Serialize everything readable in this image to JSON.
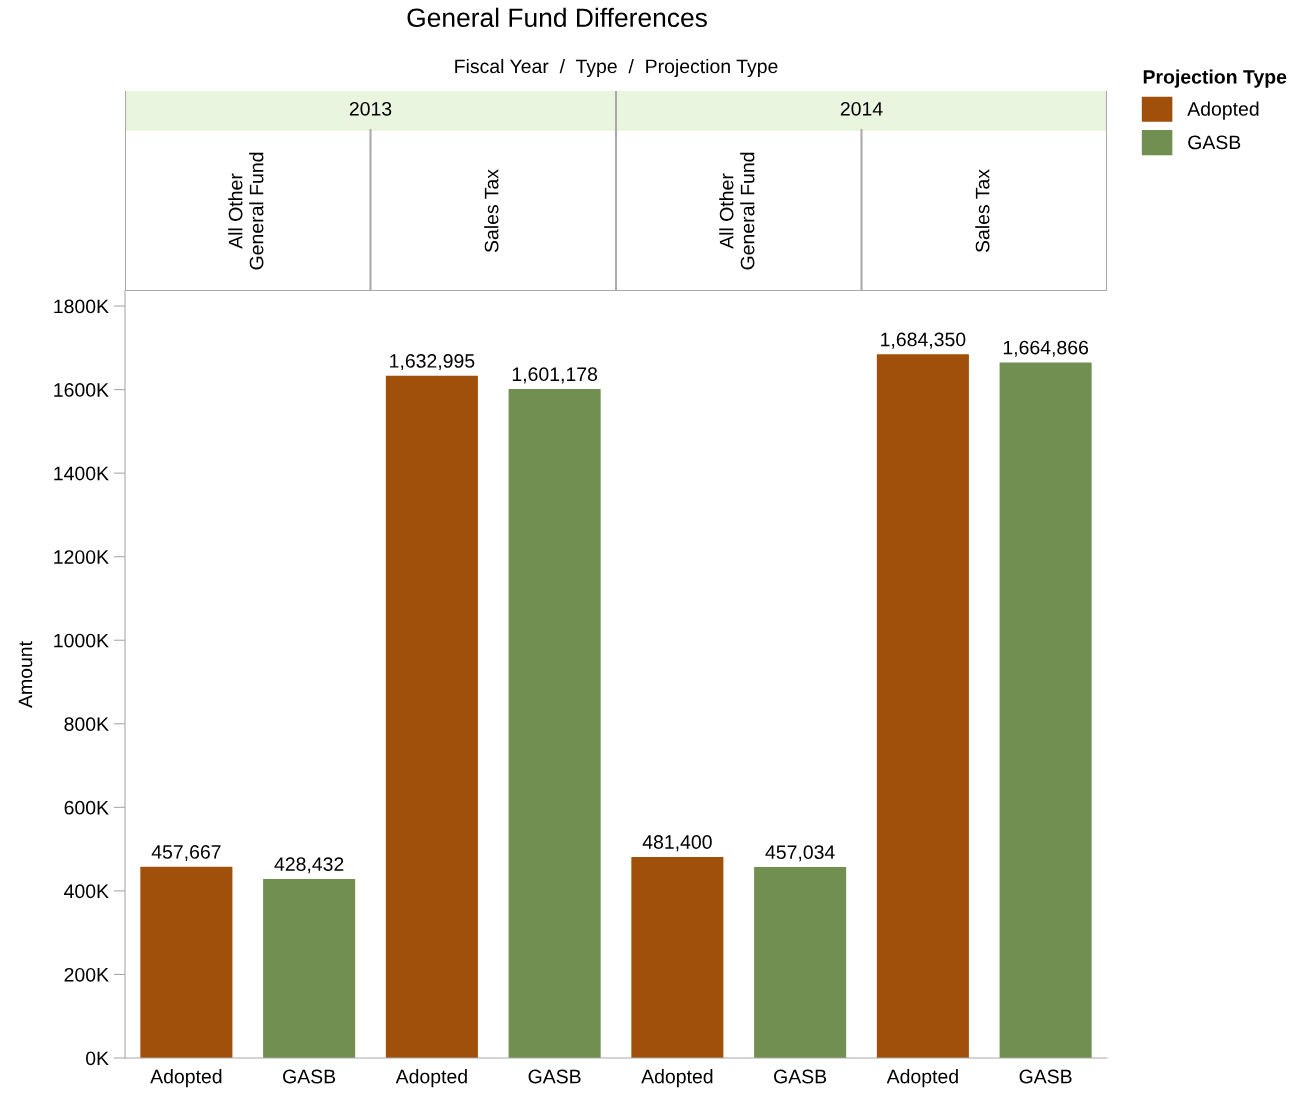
{
  "chart_data": {
    "type": "bar",
    "title": "General Fund Differences",
    "subtitle": "Fiscal Year  /  Type  /  Projection Type",
    "ylabel": "Amount",
    "legend_title": "Projection Type",
    "legend": "top right",
    "categories": [
      "Adopted",
      "GASB",
      "Adopted",
      "GASB",
      "Adopted",
      "GASB",
      "Adopted",
      "GASB"
    ],
    "series": [
      {
        "name": "Adopted",
        "color": "#a0500a",
        "values": [
          457667,
          null,
          1632995,
          null,
          481400,
          null,
          1684350,
          null
        ],
        "value_labels": [
          "457,667",
          null,
          "1,632,995",
          null,
          "481,400",
          null,
          "1,684,350",
          null
        ]
      },
      {
        "name": "GASB",
        "color": "#728f52",
        "values": [
          null,
          428432,
          null,
          1601178,
          null,
          457034,
          null,
          1664866
        ],
        "value_labels": [
          null,
          "428,432",
          null,
          "1,601,178",
          null,
          "457,034",
          null,
          "1,664,866"
        ]
      }
    ],
    "ylim": [
      0,
      1836000
    ],
    "yticks": [
      {
        "value": 0,
        "label": "0K"
      },
      {
        "value": 200000,
        "label": "200K"
      },
      {
        "value": 400000,
        "label": "400K"
      },
      {
        "value": 600000,
        "label": "600K"
      },
      {
        "value": 800000,
        "label": "800K"
      },
      {
        "value": 1000000,
        "label": "1000K"
      },
      {
        "value": 1200000,
        "label": "1200K"
      },
      {
        "value": 1400000,
        "label": "1400K"
      },
      {
        "value": 1600000,
        "label": "1600K"
      },
      {
        "value": 1800000,
        "label": "1800K"
      }
    ],
    "grid": false,
    "annotations": [
      "2013",
      "2014",
      "All Other\nGeneral Fund",
      "Sales Tax",
      "All Other\nGeneral Fund",
      "Sales Tax"
    ]
  }
}
